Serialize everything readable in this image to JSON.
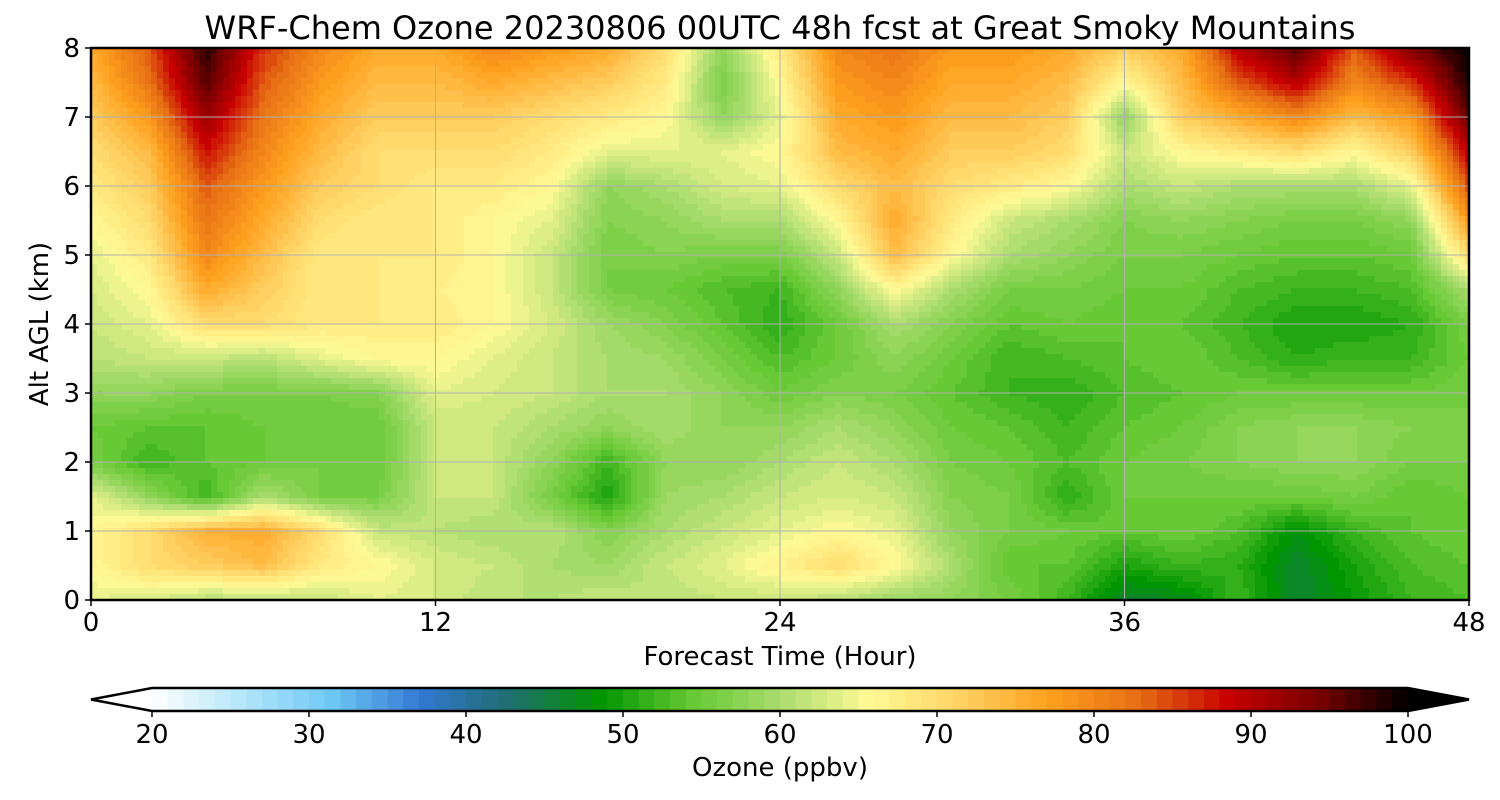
{
  "chart_data": {
    "type": "heatmap",
    "title": "WRF-Chem Ozone  20230806 00UTC 48h fcst at Great Smoky Mountains",
    "xlabel": "Forecast Time (Hour)",
    "ylabel": "Alt AGL (km)",
    "xlim": [
      0,
      48
    ],
    "ylim": [
      0,
      8
    ],
    "x_ticks": [
      "0",
      "12",
      "24",
      "36",
      "48"
    ],
    "y_ticks": [
      "0",
      "1",
      "2",
      "3",
      "4",
      "5",
      "6",
      "7",
      "8"
    ],
    "grid": true,
    "colorbar": {
      "label": "Ozone  (ppbv)",
      "range": [
        20,
        100
      ],
      "ticks": [
        "20",
        "30",
        "40",
        "50",
        "60",
        "70",
        "80",
        "90",
        "100"
      ],
      "extend": "both",
      "orientation": "horizontal",
      "colors": [
        "#ffffff",
        "#b4e6fa",
        "#6ec8f5",
        "#3278d2",
        "#1e6e6e",
        "#009600",
        "#64c832",
        "#aadc6e",
        "#fffa96",
        "#ffd264",
        "#ffa01e",
        "#e66e14",
        "#c80000",
        "#780000",
        "#000000"
      ]
    },
    "x": [
      0,
      2,
      4,
      6,
      8,
      10,
      12,
      14,
      16,
      18,
      20,
      22,
      24,
      26,
      28,
      30,
      32,
      34,
      36,
      38,
      40,
      42,
      44,
      46,
      48
    ],
    "y": [
      0,
      0.5,
      1,
      1.5,
      2,
      2.5,
      3,
      3.5,
      4,
      4.5,
      5,
      5.5,
      6,
      6.5,
      7,
      7.5,
      8
    ],
    "z": [
      [
        64,
        63,
        61,
        61,
        62,
        64,
        63,
        61,
        61,
        62,
        61,
        62,
        62,
        61,
        59,
        58,
        56,
        52,
        46,
        47,
        52,
        46,
        49,
        52,
        53
      ],
      [
        66,
        70,
        72,
        74,
        68,
        66,
        63,
        62,
        60,
        59,
        62,
        64,
        67,
        70,
        66,
        60,
        54,
        54,
        50,
        52,
        51,
        46,
        50,
        53,
        54
      ],
      [
        66,
        70,
        75,
        76,
        70,
        62,
        61,
        60,
        61,
        57,
        60,
        62,
        64,
        66,
        64,
        58,
        56,
        55,
        54,
        55,
        53,
        48,
        52,
        54,
        55
      ],
      [
        64,
        58,
        52,
        60,
        56,
        56,
        62,
        62,
        56,
        50,
        59,
        60,
        62,
        63,
        62,
        57,
        56,
        51,
        55,
        55,
        55,
        55,
        56,
        54,
        55
      ],
      [
        56,
        52,
        54,
        55,
        56,
        55,
        62,
        62,
        58,
        52,
        58,
        58,
        60,
        62,
        60,
        56,
        55,
        53,
        55,
        56,
        57,
        58,
        58,
        56,
        56
      ],
      [
        55,
        54,
        54,
        55,
        55,
        55,
        62,
        62,
        60,
        58,
        60,
        58,
        58,
        60,
        58,
        55,
        54,
        52,
        54,
        55,
        57,
        58,
        58,
        57,
        56
      ],
      [
        58,
        58,
        56,
        56,
        56,
        57,
        64,
        63,
        62,
        60,
        60,
        58,
        55,
        57,
        56,
        54,
        52,
        51,
        53,
        54,
        55,
        55,
        55,
        55,
        56
      ],
      [
        61,
        62,
        62,
        61,
        64,
        66,
        66,
        64,
        62,
        60,
        59,
        56,
        53,
        55,
        58,
        55,
        52,
        53,
        54,
        55,
        53,
        51,
        52,
        52,
        55
      ],
      [
        62,
        64,
        70,
        70,
        68,
        68,
        68,
        66,
        63,
        59,
        57,
        54,
        51,
        55,
        60,
        57,
        54,
        55,
        54,
        54,
        52,
        50,
        50,
        51,
        56
      ],
      [
        63,
        66,
        76,
        72,
        68,
        68,
        67,
        66,
        62,
        56,
        55,
        53,
        52,
        58,
        66,
        60,
        56,
        56,
        55,
        55,
        53,
        52,
        52,
        53,
        60
      ],
      [
        64,
        68,
        80,
        74,
        68,
        68,
        68,
        66,
        62,
        56,
        57,
        56,
        56,
        62,
        74,
        66,
        60,
        58,
        56,
        56,
        55,
        54,
        54,
        55,
        70
      ],
      [
        66,
        70,
        82,
        76,
        70,
        68,
        68,
        66,
        64,
        57,
        58,
        60,
        60,
        66,
        76,
        68,
        62,
        60,
        57,
        58,
        57,
        56,
        56,
        58,
        78
      ],
      [
        68,
        72,
        84,
        78,
        72,
        70,
        68,
        68,
        66,
        58,
        60,
        63,
        64,
        70,
        74,
        70,
        68,
        66,
        60,
        62,
        60,
        60,
        60,
        64,
        85
      ],
      [
        70,
        74,
        88,
        80,
        74,
        70,
        70,
        70,
        68,
        64,
        64,
        64,
        66,
        74,
        76,
        72,
        72,
        70,
        62,
        66,
        68,
        70,
        66,
        72,
        90
      ],
      [
        72,
        78,
        92,
        82,
        76,
        72,
        72,
        72,
        70,
        68,
        66,
        58,
        64,
        76,
        78,
        74,
        74,
        72,
        58,
        72,
        76,
        80,
        74,
        78,
        96
      ],
      [
        74,
        82,
        96,
        84,
        78,
        74,
        74,
        76,
        74,
        72,
        68,
        56,
        66,
        78,
        80,
        76,
        76,
        74,
        66,
        74,
        84,
        90,
        80,
        86,
        99
      ],
      [
        76,
        84,
        98,
        86,
        80,
        76,
        76,
        80,
        78,
        76,
        70,
        58,
        68,
        80,
        82,
        78,
        78,
        76,
        72,
        76,
        90,
        96,
        84,
        94,
        100
      ]
    ]
  }
}
